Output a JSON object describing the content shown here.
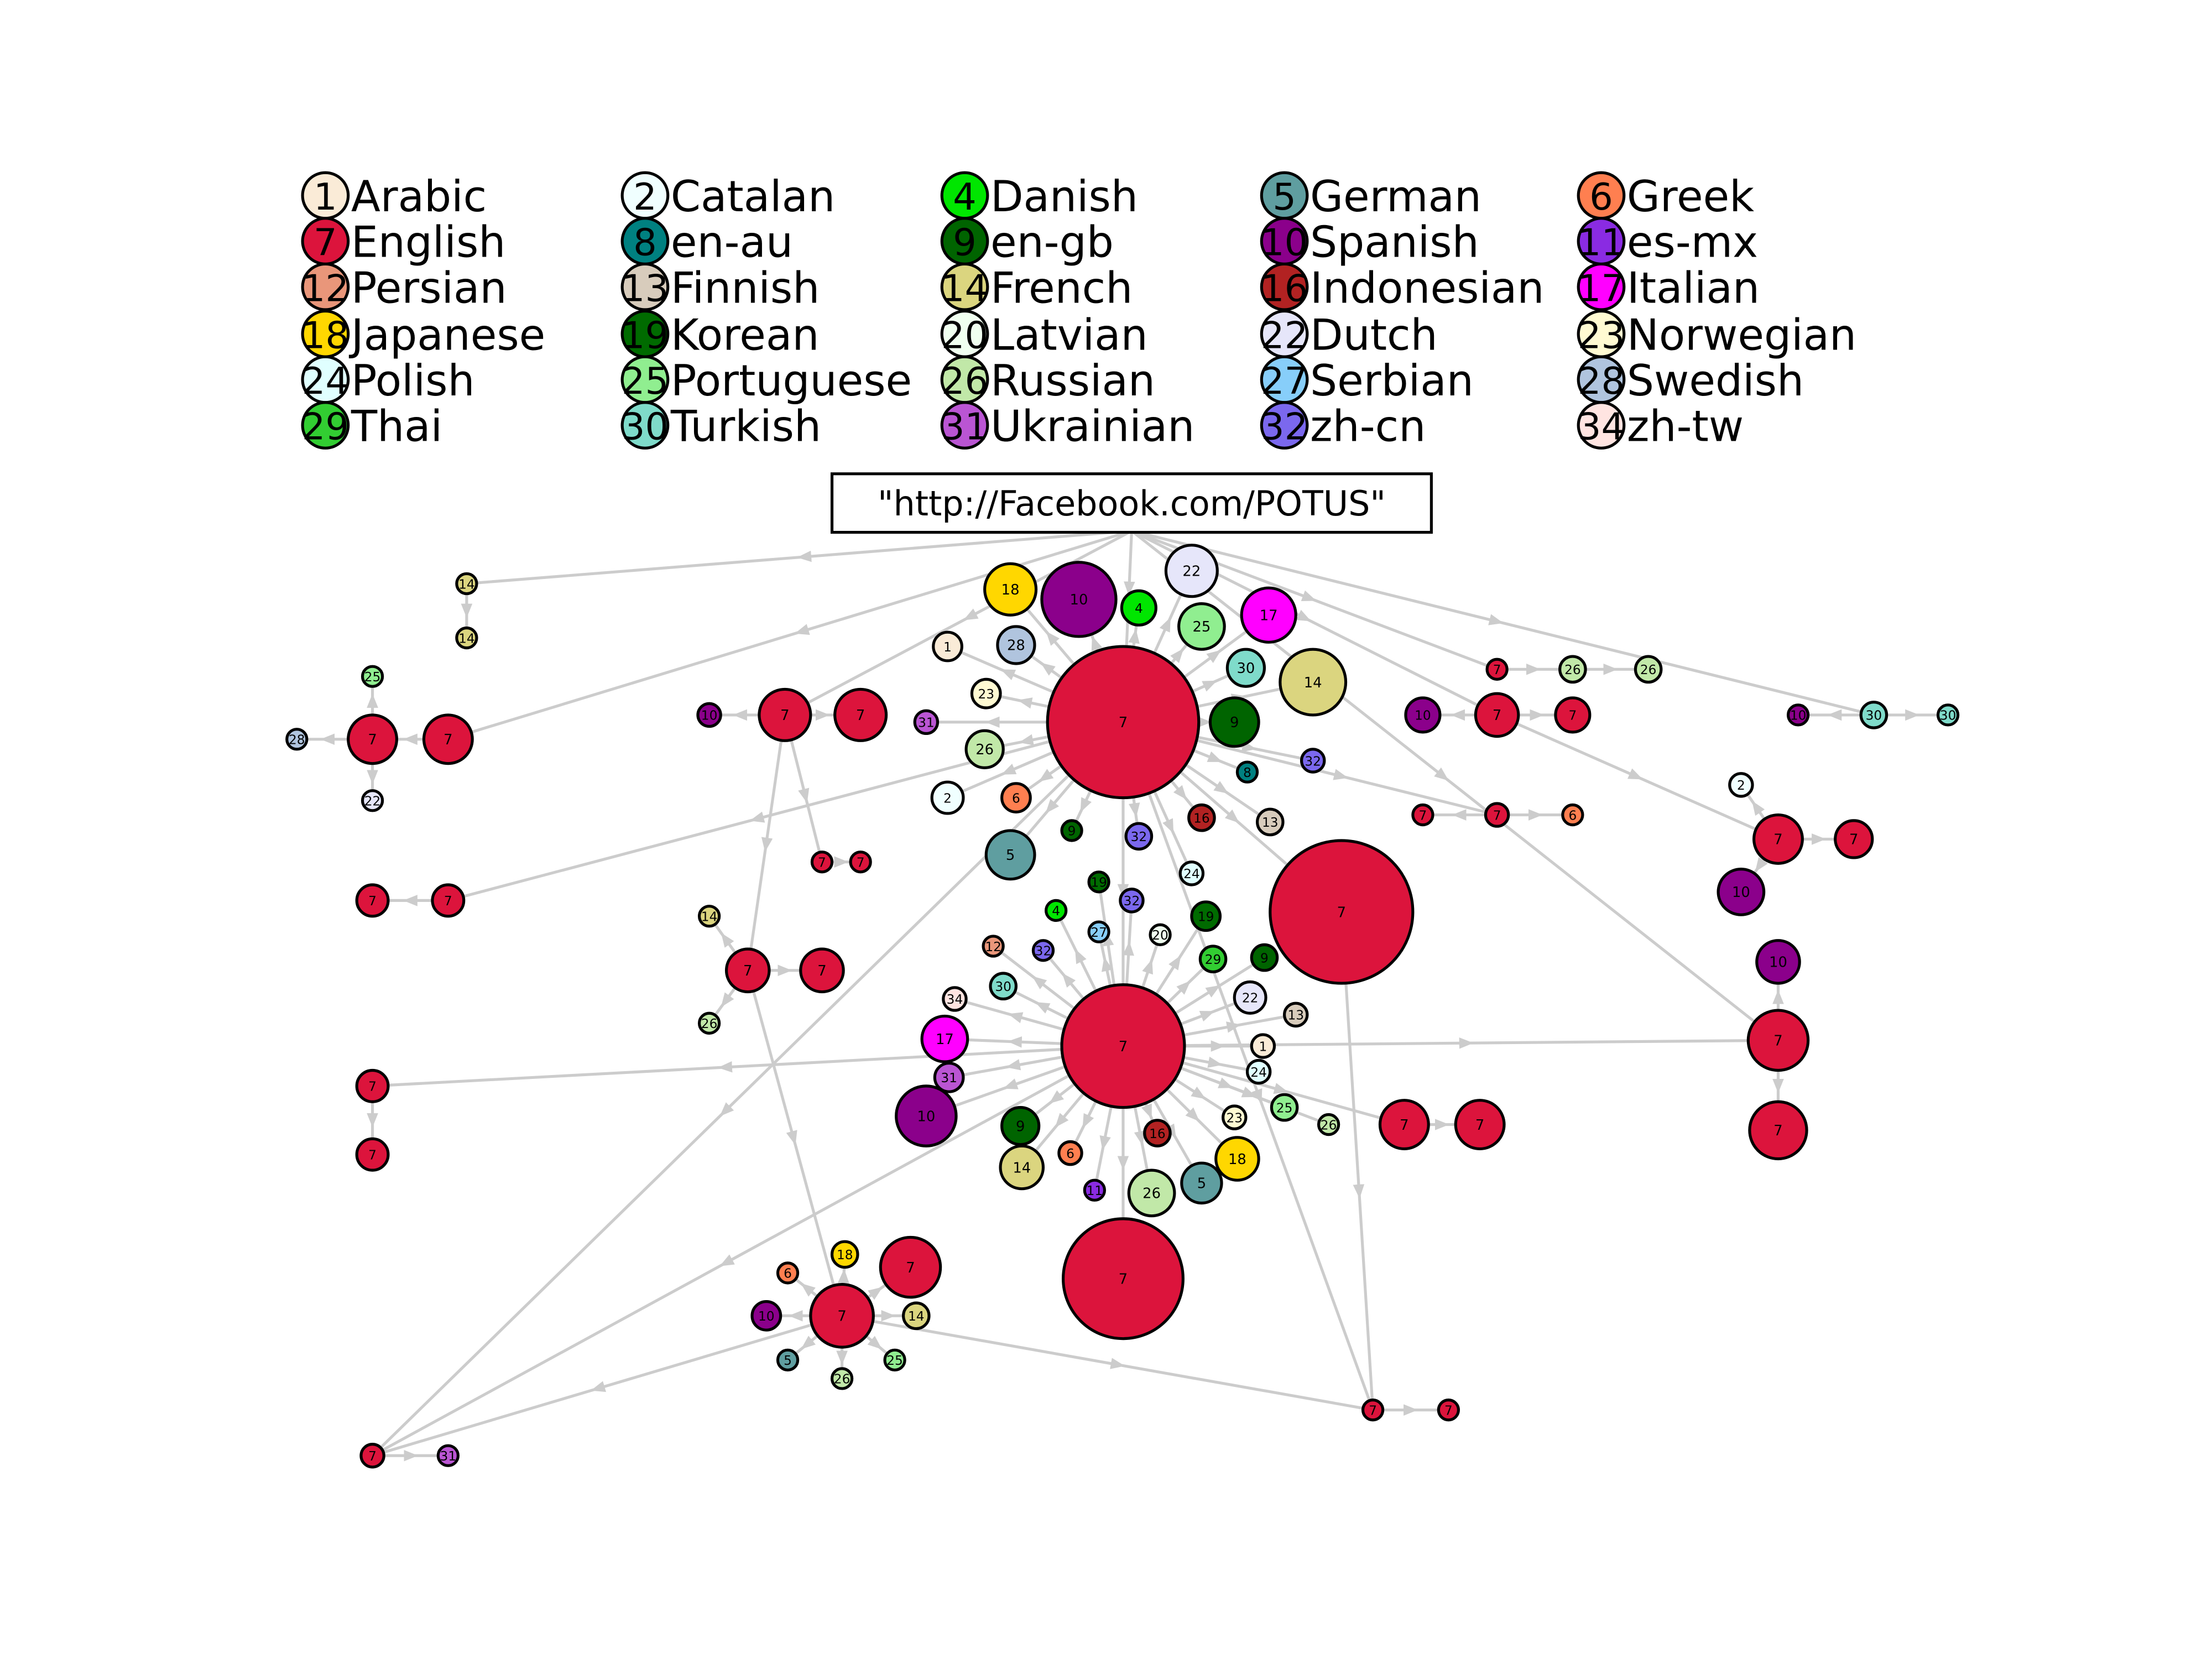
{
  "legend": {
    "entries": [
      {
        "number": "1",
        "label": "Arabic",
        "color": "#faebd7"
      },
      {
        "number": "2",
        "label": "Catalan",
        "color": "#f0ffff"
      },
      {
        "number": "4",
        "label": "Danish",
        "color": "#00e600"
      },
      {
        "number": "5",
        "label": "German",
        "color": "#5f9ea0"
      },
      {
        "number": "6",
        "label": "Greek",
        "color": "#ff7f50"
      },
      {
        "number": "7",
        "label": "English",
        "color": "#dc143c"
      },
      {
        "number": "8",
        "label": "en-au",
        "color": "#008080"
      },
      {
        "number": "9",
        "label": "en-gb",
        "color": "#006400"
      },
      {
        "number": "10",
        "label": "Spanish",
        "color": "#8b008b"
      },
      {
        "number": "11",
        "label": "es-mx",
        "color": "#8a2be2"
      },
      {
        "number": "12",
        "label": "Persian",
        "color": "#e9967a"
      },
      {
        "number": "13",
        "label": "Finnish",
        "color": "#d8ccbc"
      },
      {
        "number": "14",
        "label": "French",
        "color": "#dbd57f"
      },
      {
        "number": "16",
        "label": "Indonesian",
        "color": "#b22222"
      },
      {
        "number": "17",
        "label": "Italian",
        "color": "#ff00ff"
      },
      {
        "number": "18",
        "label": "Japanese",
        "color": "#ffd700"
      },
      {
        "number": "19",
        "label": "Korean",
        "color": "#006b00"
      },
      {
        "number": "20",
        "label": "Latvian",
        "color": "#f0fff0"
      },
      {
        "number": "22",
        "label": "Dutch",
        "color": "#e6e6fa"
      },
      {
        "number": "23",
        "label": "Norwegian",
        "color": "#fffad2"
      },
      {
        "number": "24",
        "label": "Polish",
        "color": "#e0ffff"
      },
      {
        "number": "25",
        "label": "Portuguese",
        "color": "#90ee90"
      },
      {
        "number": "26",
        "label": "Russian",
        "color": "#c1e8a8"
      },
      {
        "number": "27",
        "label": "Serbian",
        "color": "#87cefa"
      },
      {
        "number": "28",
        "label": "Swedish",
        "color": "#b0c4de"
      },
      {
        "number": "29",
        "label": "Thai",
        "color": "#32cd32"
      },
      {
        "number": "30",
        "label": "Turkish",
        "color": "#7fdbca"
      },
      {
        "number": "31",
        "label": "Ukrainian",
        "color": "#ba55d3"
      },
      {
        "number": "32",
        "label": "zh-cn",
        "color": "#7b68ee"
      },
      {
        "number": "34",
        "label": "zh-tw",
        "color": "#ffe4e1"
      }
    ]
  },
  "root": {
    "label": "\"http://Facebook.com/POTUS\""
  },
  "nodes": [
    "7",
    "7",
    "7",
    "7",
    "18",
    "10",
    "4",
    "22",
    "25",
    "17",
    "1",
    "28",
    "30",
    "14",
    "23",
    "31",
    "26",
    "9",
    "2",
    "6",
    "8",
    "32",
    "16",
    "13",
    "5",
    "9",
    "32",
    "24",
    "19",
    "4",
    "32",
    "27",
    "20",
    "19",
    "29",
    "9",
    "12",
    "32",
    "30",
    "34",
    "22",
    "13",
    "17",
    "1",
    "24",
    "31",
    "10",
    "23",
    "25",
    "26",
    "9",
    "16",
    "18",
    "6",
    "14",
    "11",
    "26",
    "5",
    "7",
    "7",
    "14",
    "14",
    "7",
    "7",
    "25",
    "28",
    "22",
    "7",
    "7",
    "7",
    "7",
    "7",
    "31",
    "7",
    "10",
    "7",
    "7",
    "7",
    "7",
    "14",
    "26",
    "7",
    "7",
    "7",
    "18",
    "6",
    "10",
    "14",
    "5",
    "26",
    "25",
    "7",
    "7",
    "7",
    "26",
    "26",
    "7",
    "10",
    "7",
    "30",
    "10",
    "30",
    "7",
    "7",
    "6",
    "7",
    "2",
    "7",
    "10",
    "7",
    "10",
    "7"
  ]
}
